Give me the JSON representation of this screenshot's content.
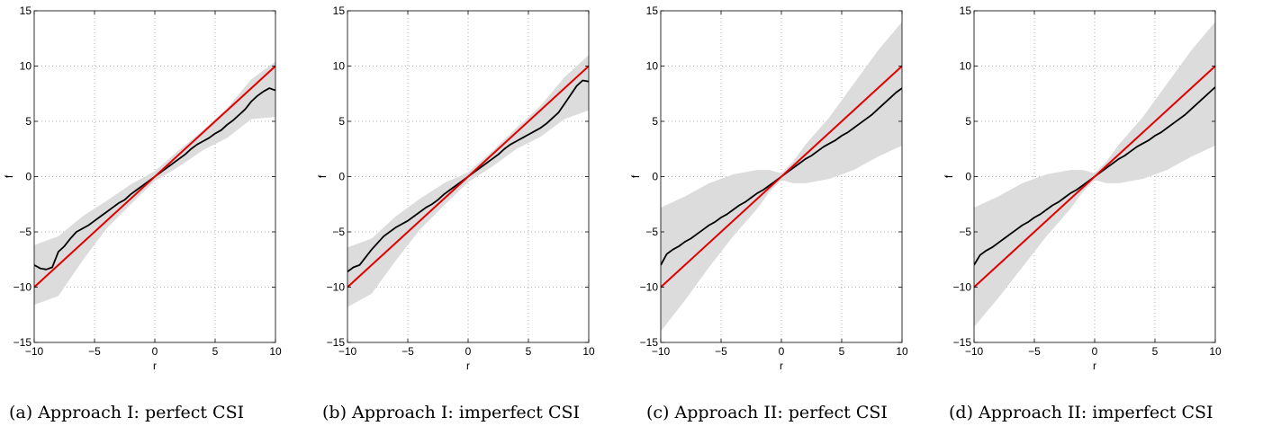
{
  "colors": {
    "band": "#dcdcdc",
    "mean_curve": "#000000",
    "ideal_line": "#e00000",
    "grid": "#999999"
  },
  "chart_data": [
    {
      "type": "line",
      "caption": "(a) Approach I: perfect CSI",
      "xlabel": "r",
      "ylabel": "f",
      "xlim": [
        -10,
        10
      ],
      "ylim": [
        -15,
        15
      ],
      "xticks": [
        -10,
        -5,
        0,
        5,
        10
      ],
      "yticks": [
        -15,
        -10,
        -5,
        0,
        5,
        10,
        15
      ],
      "grid": true,
      "ideal_line": {
        "x": [
          -10,
          10
        ],
        "y": [
          -10,
          10
        ]
      },
      "mean_curve": {
        "x": [
          -10,
          -9.5,
          -9,
          -8.5,
          -8,
          -7.5,
          -7,
          -6.5,
          -6,
          -5.5,
          -5,
          -4.5,
          -4,
          -3.5,
          -3,
          -2.5,
          -2,
          -1.5,
          -1,
          -0.5,
          0,
          0.5,
          1,
          1.5,
          2,
          2.5,
          3,
          3.5,
          4,
          4.5,
          5,
          5.5,
          6,
          6.5,
          7,
          7.5,
          8,
          8.5,
          9,
          9.5,
          10
        ],
        "y": [
          -8,
          -8.3,
          -8.4,
          -8.2,
          -6.8,
          -6.3,
          -5.6,
          -5.0,
          -4.7,
          -4.4,
          -4.0,
          -3.6,
          -3.2,
          -2.8,
          -2.4,
          -2.1,
          -1.6,
          -1.2,
          -0.8,
          -0.4,
          0,
          0.4,
          0.8,
          1.2,
          1.6,
          2.0,
          2.5,
          2.9,
          3.2,
          3.5,
          3.9,
          4.2,
          4.7,
          5.1,
          5.6,
          6.1,
          6.8,
          7.3,
          7.7,
          8.0,
          7.8
        ]
      },
      "band": {
        "x": [
          -10,
          -8,
          -6,
          -4,
          -2,
          0,
          2,
          4,
          6,
          8,
          10
        ],
        "upper": [
          -6.2,
          -5.4,
          -3.6,
          -2.2,
          -0.7,
          0.5,
          2.4,
          4.2,
          6.2,
          8.8,
          10.4
        ],
        "lower": [
          -11.6,
          -10.8,
          -7.6,
          -4.7,
          -2.5,
          -0.4,
          0.9,
          2.4,
          3.5,
          5.2,
          5.4
        ]
      }
    },
    {
      "type": "line",
      "caption": "(b) Approach I: imperfect CSI",
      "xlabel": "r",
      "ylabel": "f",
      "xlim": [
        -10,
        10
      ],
      "ylim": [
        -15,
        15
      ],
      "xticks": [
        -10,
        -5,
        0,
        5,
        10
      ],
      "yticks": [
        -15,
        -10,
        -5,
        0,
        5,
        10,
        15
      ],
      "grid": true,
      "ideal_line": {
        "x": [
          -10,
          10
        ],
        "y": [
          -10,
          10
        ]
      },
      "mean_curve": {
        "x": [
          -10,
          -9.5,
          -9,
          -8.5,
          -8,
          -7.5,
          -7,
          -6.5,
          -6,
          -5.5,
          -5,
          -4.5,
          -4,
          -3.5,
          -3,
          -2.5,
          -2,
          -1.5,
          -1,
          -0.5,
          0,
          0.5,
          1,
          1.5,
          2,
          2.5,
          3,
          3.5,
          4,
          4.5,
          5,
          5.5,
          6,
          6.5,
          7,
          7.5,
          8,
          8.5,
          9,
          9.5,
          10
        ],
        "y": [
          -8.6,
          -8.2,
          -8.0,
          -7.3,
          -6.6,
          -6.0,
          -5.4,
          -5.0,
          -4.6,
          -4.3,
          -4.0,
          -3.6,
          -3.2,
          -2.8,
          -2.5,
          -2.1,
          -1.6,
          -1.2,
          -0.8,
          -0.4,
          0,
          0.4,
          0.8,
          1.2,
          1.6,
          2.0,
          2.5,
          2.9,
          3.2,
          3.5,
          3.8,
          4.1,
          4.4,
          4.8,
          5.3,
          5.8,
          6.6,
          7.4,
          8.2,
          8.7,
          8.6
        ]
      },
      "band": {
        "x": [
          -10,
          -8,
          -6,
          -4,
          -2,
          0,
          2,
          4,
          6,
          8,
          10
        ],
        "upper": [
          -6.4,
          -5.6,
          -3.6,
          -2.0,
          -0.6,
          0.4,
          2.3,
          4.4,
          6.4,
          9.0,
          11.0
        ],
        "lower": [
          -11.8,
          -10.6,
          -7.6,
          -4.8,
          -2.6,
          -0.5,
          0.9,
          2.5,
          3.6,
          5.2,
          6.0
        ]
      }
    },
    {
      "type": "line",
      "caption": "(c) Approach II: perfect CSI",
      "xlabel": "r",
      "ylabel": "f",
      "xlim": [
        -10,
        10
      ],
      "ylim": [
        -15,
        15
      ],
      "xticks": [
        -10,
        -5,
        0,
        5,
        10
      ],
      "yticks": [
        -15,
        -10,
        -5,
        0,
        5,
        10,
        15
      ],
      "grid": true,
      "ideal_line": {
        "x": [
          -10,
          10
        ],
        "y": [
          -10,
          10
        ]
      },
      "mean_curve": {
        "x": [
          -10,
          -9.5,
          -9,
          -8.5,
          -8,
          -7.5,
          -7,
          -6.5,
          -6,
          -5.5,
          -5,
          -4.5,
          -4,
          -3.5,
          -3,
          -2.5,
          -2,
          -1.5,
          -1,
          -0.5,
          0,
          0.5,
          1,
          1.5,
          2,
          2.5,
          3,
          3.5,
          4,
          4.5,
          5,
          5.5,
          6,
          6.5,
          7,
          7.5,
          8,
          8.5,
          9,
          9.5,
          10
        ],
        "y": [
          -8.0,
          -7.0,
          -6.6,
          -6.3,
          -5.9,
          -5.6,
          -5.2,
          -4.8,
          -4.4,
          -4.1,
          -3.7,
          -3.4,
          -3.0,
          -2.6,
          -2.3,
          -1.9,
          -1.5,
          -1.2,
          -0.8,
          -0.4,
          0,
          0.4,
          0.8,
          1.2,
          1.6,
          1.9,
          2.3,
          2.7,
          3.0,
          3.3,
          3.7,
          4.0,
          4.4,
          4.8,
          5.2,
          5.6,
          6.1,
          6.6,
          7.1,
          7.6,
          8.0
        ]
      },
      "band": {
        "x": [
          -10,
          -8,
          -6,
          -4,
          -2,
          -1,
          0,
          1,
          2,
          4,
          6,
          8,
          10
        ],
        "upper": [
          -2.8,
          -1.8,
          -0.6,
          0.2,
          0.6,
          0.6,
          0.3,
          1.4,
          2.9,
          5.4,
          8.4,
          11.4,
          14.0
        ],
        "lower": [
          -14.0,
          -11.2,
          -8.2,
          -5.4,
          -2.9,
          -1.4,
          -0.3,
          -0.6,
          -0.6,
          -0.2,
          0.6,
          1.8,
          2.8
        ]
      }
    },
    {
      "type": "line",
      "caption": "(d) Approach II: imperfect CSI",
      "xlabel": "r",
      "ylabel": "f",
      "xlim": [
        -10,
        10
      ],
      "ylim": [
        -15,
        15
      ],
      "xticks": [
        -10,
        -5,
        0,
        5,
        10
      ],
      "yticks": [
        -15,
        -10,
        -5,
        0,
        5,
        10,
        15
      ],
      "grid": true,
      "ideal_line": {
        "x": [
          -10,
          10
        ],
        "y": [
          -10,
          10
        ]
      },
      "mean_curve": {
        "x": [
          -10,
          -9.5,
          -9,
          -8.5,
          -8,
          -7.5,
          -7,
          -6.5,
          -6,
          -5.5,
          -5,
          -4.5,
          -4,
          -3.5,
          -3,
          -2.5,
          -2,
          -1.5,
          -1,
          -0.5,
          0,
          0.5,
          1,
          1.5,
          2,
          2.5,
          3,
          3.5,
          4,
          4.5,
          5,
          5.5,
          6,
          6.5,
          7,
          7.5,
          8,
          8.5,
          9,
          9.5,
          10
        ],
        "y": [
          -8.0,
          -7.1,
          -6.7,
          -6.4,
          -6.0,
          -5.6,
          -5.2,
          -4.8,
          -4.4,
          -4.1,
          -3.7,
          -3.4,
          -3.0,
          -2.6,
          -2.3,
          -1.9,
          -1.5,
          -1.2,
          -0.8,
          -0.4,
          0,
          0.4,
          0.8,
          1.2,
          1.6,
          1.9,
          2.3,
          2.7,
          3.0,
          3.3,
          3.7,
          4.0,
          4.4,
          4.8,
          5.2,
          5.6,
          6.1,
          6.6,
          7.1,
          7.6,
          8.1
        ]
      },
      "band": {
        "x": [
          -10,
          -8,
          -6,
          -4,
          -2,
          -1,
          0,
          1,
          2,
          4,
          6,
          8,
          10
        ],
        "upper": [
          -2.8,
          -1.8,
          -0.6,
          0.2,
          0.6,
          0.6,
          0.3,
          1.4,
          2.9,
          5.4,
          8.4,
          11.4,
          14.0
        ],
        "lower": [
          -13.6,
          -11.0,
          -8.2,
          -5.4,
          -2.9,
          -1.4,
          -0.3,
          -0.6,
          -0.6,
          -0.2,
          0.6,
          1.8,
          2.8
        ]
      }
    }
  ]
}
